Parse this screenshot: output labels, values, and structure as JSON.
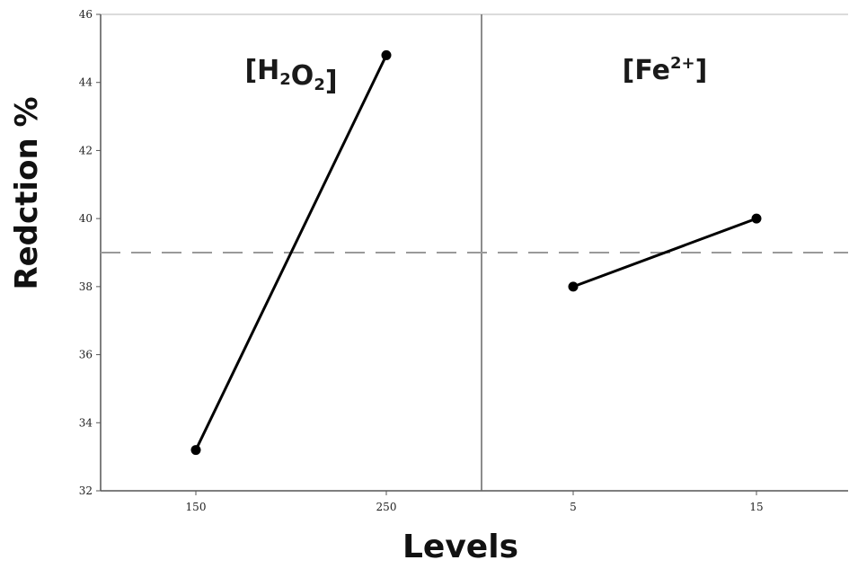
{
  "chart_data": {
    "type": "line",
    "ylabel": "Redction %",
    "xlabel": "Levels",
    "ylim": [
      32,
      46
    ],
    "yticks": [
      32,
      34,
      36,
      38,
      40,
      42,
      44,
      46
    ],
    "reference_line": 39.0,
    "reference_style": "dashed",
    "marker_color": "#000000",
    "line_color": "#000000",
    "panels": [
      {
        "title": "[H2O2]",
        "categories": [
          "150",
          "250"
        ],
        "values": [
          33.2,
          44.8
        ]
      },
      {
        "title": "[Fe2+]",
        "categories": [
          "5",
          "15"
        ],
        "values": [
          38.0,
          40.0
        ]
      }
    ]
  }
}
